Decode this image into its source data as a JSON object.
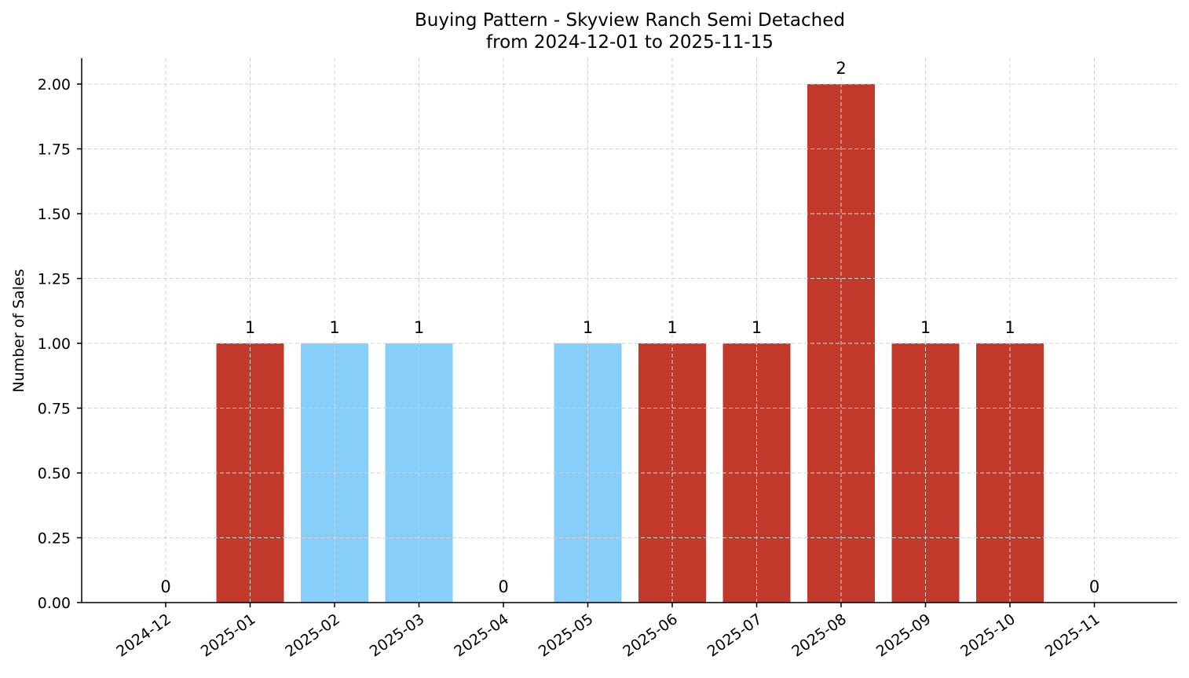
{
  "chart_data": {
    "type": "bar",
    "title": "Buying Pattern - Skyview Ranch Semi Detached",
    "subtitle": "from 2024-12-01 to 2025-11-15",
    "xlabel": "",
    "ylabel": "Number of Sales",
    "ylim": [
      0,
      2.1
    ],
    "yticks": [
      "0.00",
      "0.25",
      "0.50",
      "0.75",
      "1.00",
      "1.25",
      "1.50",
      "1.75",
      "2.00"
    ],
    "ytick_values": [
      0,
      0.25,
      0.5,
      0.75,
      1.0,
      1.25,
      1.5,
      1.75,
      2.0
    ],
    "grid": true,
    "categories": [
      "2024-12",
      "2025-01",
      "2025-02",
      "2025-03",
      "2025-04",
      "2025-05",
      "2025-06",
      "2025-07",
      "2025-08",
      "2025-09",
      "2025-10",
      "2025-11"
    ],
    "values": [
      0,
      1,
      1,
      1,
      0,
      1,
      1,
      1,
      2,
      1,
      1,
      0
    ],
    "bar_colors": [
      "#c0392b",
      "#c0392b",
      "#87cefa",
      "#87cefa",
      "#c0392b",
      "#87cefa",
      "#c0392b",
      "#c0392b",
      "#c0392b",
      "#c0392b",
      "#c0392b",
      "#c0392b"
    ],
    "data_labels": [
      "0",
      "1",
      "1",
      "1",
      "0",
      "1",
      "1",
      "1",
      "2",
      "1",
      "1",
      "0"
    ]
  }
}
